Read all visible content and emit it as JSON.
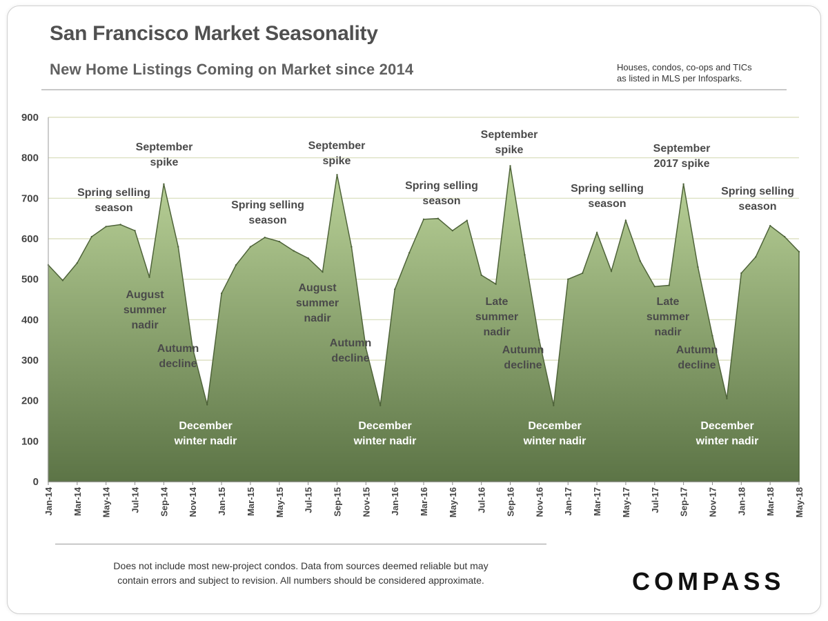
{
  "header": {
    "title": "San Francisco Market Seasonality",
    "subtitle": "New Home Listings Coming on Market since 2014",
    "source_note_1": "Houses, condos, co-ops and TICs",
    "source_note_2": "as listed in MLS per Infosparks."
  },
  "footer": {
    "disclaimer_1": "Does not include most new-project condos. Data from sources deemed reliable but may",
    "disclaimer_2": "contain errors and subject to revision.  All numbers should be considered approximate.",
    "logo": "COMPASS"
  },
  "colors": {
    "area_top": "#bcd49a",
    "area_bottom": "#5c7446",
    "area_edge": "#4e6339",
    "grid": "#d6dbb8"
  },
  "chart_data": {
    "type": "area",
    "title": "San Francisco Market Seasonality",
    "subtitle": "New Home Listings Coming on Market since 2014",
    "xlabel": "",
    "ylabel": "",
    "ylim": [
      0,
      900
    ],
    "yticks": [
      0,
      100,
      200,
      300,
      400,
      500,
      600,
      700,
      800,
      900
    ],
    "grid": true,
    "x": [
      "Jan-14",
      "Feb-14",
      "Mar-14",
      "Apr-14",
      "May-14",
      "Jun-14",
      "Jul-14",
      "Aug-14",
      "Sep-14",
      "Oct-14",
      "Nov-14",
      "Dec-14",
      "Jan-15",
      "Feb-15",
      "Mar-15",
      "Apr-15",
      "May-15",
      "Jun-15",
      "Jul-15",
      "Aug-15",
      "Sep-15",
      "Oct-15",
      "Nov-15",
      "Dec-15",
      "Jan-16",
      "Feb-16",
      "Mar-16",
      "Apr-16",
      "May-16",
      "Jun-16",
      "Jul-16",
      "Aug-16",
      "Sep-16",
      "Oct-16",
      "Nov-16",
      "Dec-16",
      "Jan-17",
      "Feb-17",
      "Mar-17",
      "Apr-17",
      "May-17",
      "Jun-17",
      "Jul-17",
      "Aug-17",
      "Sep-17",
      "Oct-17",
      "Nov-17",
      "Dec-17",
      "Jan-18",
      "Feb-18",
      "Mar-18",
      "Apr-18",
      "May-18"
    ],
    "xtick_labels": [
      "Jan-14",
      "Mar-14",
      "May-14",
      "Jul-14",
      "Sep-14",
      "Nov-14",
      "Jan-15",
      "Mar-15",
      "May-15",
      "Jul-15",
      "Sep-15",
      "Nov-15",
      "Jan-16",
      "Mar-16",
      "May-16",
      "Jul-16",
      "Sep-16",
      "Nov-16",
      "Jan-17",
      "Mar-17",
      "May-17",
      "Jul-17",
      "Sep-17",
      "Nov-17",
      "Jan-18",
      "Mar-18",
      "May-18"
    ],
    "values": [
      535,
      497,
      540,
      605,
      630,
      635,
      620,
      505,
      735,
      580,
      330,
      190,
      465,
      535,
      580,
      603,
      593,
      570,
      552,
      518,
      758,
      580,
      330,
      188,
      475,
      565,
      648,
      650,
      620,
      645,
      510,
      488,
      780,
      560,
      350,
      188,
      500,
      515,
      615,
      520,
      645,
      545,
      482,
      485,
      735,
      530,
      360,
      205,
      515,
      555,
      632,
      605,
      568
    ],
    "annotations": [
      {
        "lines": [
          "September",
          "spike"
        ],
        "at": "Sep-14",
        "tone": "dark"
      },
      {
        "lines": [
          "Spring selling",
          "season"
        ],
        "at": "May-14",
        "tone": "dark"
      },
      {
        "lines": [
          "August",
          "summer",
          "nadir"
        ],
        "at": "Aug-14",
        "tone": "dark"
      },
      {
        "lines": [
          "Autumn",
          "decline"
        ],
        "at": "Oct-14",
        "tone": "dark"
      },
      {
        "lines": [
          "December",
          "winter nadir"
        ],
        "at": "Dec-14",
        "tone": "light"
      },
      {
        "lines": [
          "Spring selling",
          "season"
        ],
        "at": "Apr-15",
        "tone": "dark"
      },
      {
        "lines": [
          "September",
          "spike"
        ],
        "at": "Sep-15",
        "tone": "dark"
      },
      {
        "lines": [
          "August",
          "summer",
          "nadir"
        ],
        "at": "Aug-15",
        "tone": "dark"
      },
      {
        "lines": [
          "Autumn",
          "decline"
        ],
        "at": "Oct-15",
        "tone": "dark"
      },
      {
        "lines": [
          "December",
          "winter nadir"
        ],
        "at": "Dec-15",
        "tone": "light"
      },
      {
        "lines": [
          "Spring selling",
          "season"
        ],
        "at": "Apr-16",
        "tone": "dark"
      },
      {
        "lines": [
          "September",
          "spike"
        ],
        "at": "Sep-16",
        "tone": "dark"
      },
      {
        "lines": [
          "Late",
          "summer",
          "nadir"
        ],
        "at": "Aug-16",
        "tone": "dark"
      },
      {
        "lines": [
          "Autumn",
          "decline"
        ],
        "at": "Oct-16",
        "tone": "dark"
      },
      {
        "lines": [
          "December",
          "winter nadir"
        ],
        "at": "Dec-16",
        "tone": "light"
      },
      {
        "lines": [
          "Spring selling",
          "season"
        ],
        "at": "Apr-17",
        "tone": "dark"
      },
      {
        "lines": [
          "September",
          "2017 spike"
        ],
        "at": "Sep-17",
        "tone": "dark"
      },
      {
        "lines": [
          "Late",
          "summer",
          "nadir"
        ],
        "at": "Aug-17",
        "tone": "dark"
      },
      {
        "lines": [
          "Autumn",
          "decline"
        ],
        "at": "Oct-17",
        "tone": "dark"
      },
      {
        "lines": [
          "December",
          "winter nadir"
        ],
        "at": "Dec-17",
        "tone": "light"
      },
      {
        "lines": [
          "Spring selling",
          "season"
        ],
        "at": "Apr-18",
        "tone": "dark"
      }
    ]
  }
}
